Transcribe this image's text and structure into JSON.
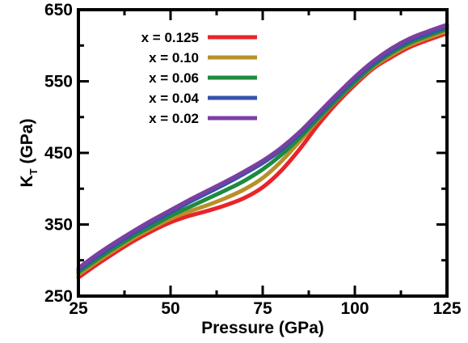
{
  "chart_data": {
    "type": "line",
    "title": "",
    "xlabel": "Pressure (GPa)",
    "ylabel": {
      "main": "K",
      "sub": "T",
      "rest": " (GPa)"
    },
    "xlim": [
      25,
      125
    ],
    "ylim": [
      250,
      650
    ],
    "xticks": [
      25,
      50,
      75,
      100,
      125
    ],
    "yticks": [
      250,
      350,
      450,
      550,
      650
    ],
    "xtick_labels": [
      "25",
      "50",
      "75",
      "100",
      "125"
    ],
    "ytick_labels": [
      "250",
      "350",
      "450",
      "550",
      "650"
    ],
    "grid": false,
    "legend_position": "top-left",
    "series": [
      {
        "name": "x = 0.125",
        "color": "#e8242a",
        "x": [
          25,
          30,
          35,
          40,
          45,
          50,
          55,
          60,
          65,
          70,
          75,
          80,
          85,
          90,
          95,
          100,
          105,
          110,
          115,
          120,
          125
        ],
        "y": [
          276,
          294,
          311,
          327,
          341,
          353,
          362,
          369,
          377,
          387,
          402,
          425,
          455,
          489,
          519,
          545,
          568,
          584,
          598,
          608,
          617
        ]
      },
      {
        "name": "x = 0.10",
        "color": "#b8902a",
        "x": [
          25,
          30,
          35,
          40,
          45,
          50,
          55,
          60,
          65,
          70,
          75,
          80,
          85,
          90,
          95,
          100,
          105,
          110,
          115,
          120,
          125
        ],
        "y": [
          280,
          298,
          315,
          331,
          345,
          358,
          368,
          377,
          387,
          399,
          415,
          438,
          466,
          496,
          523,
          548,
          570,
          587,
          601,
          611,
          620
        ]
      },
      {
        "name": "x = 0.06",
        "color": "#1e8a3f",
        "x": [
          25,
          30,
          35,
          40,
          45,
          50,
          55,
          60,
          65,
          70,
          75,
          80,
          85,
          90,
          95,
          100,
          105,
          110,
          115,
          120,
          125
        ],
        "y": [
          283,
          301,
          318,
          334,
          348,
          362,
          374,
          386,
          398,
          411,
          427,
          447,
          471,
          498,
          524,
          549,
          572,
          590,
          604,
          614,
          623
        ]
      },
      {
        "name": "x = 0.04",
        "color": "#3454a8",
        "x": [
          25,
          30,
          35,
          40,
          45,
          50,
          55,
          60,
          65,
          70,
          75,
          80,
          85,
          90,
          95,
          100,
          105,
          110,
          115,
          120,
          125
        ],
        "y": [
          286,
          305,
          322,
          338,
          353,
          367,
          381,
          394,
          407,
          421,
          436,
          454,
          476,
          502,
          528,
          553,
          575,
          593,
          607,
          617,
          626
        ]
      },
      {
        "name": "x = 0.02",
        "color": "#7b3fa0",
        "x": [
          25,
          30,
          35,
          40,
          45,
          50,
          55,
          60,
          65,
          70,
          75,
          80,
          85,
          90,
          95,
          100,
          105,
          110,
          115,
          120,
          125
        ],
        "y": [
          289,
          308,
          325,
          341,
          356,
          370,
          384,
          397,
          410,
          424,
          439,
          457,
          479,
          505,
          531,
          556,
          578,
          596,
          610,
          620,
          629
        ]
      }
    ]
  }
}
